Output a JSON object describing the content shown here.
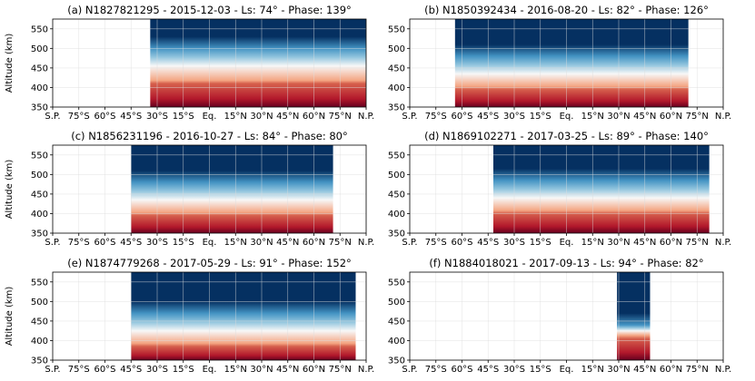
{
  "chart_data": [
    {
      "type": "heatmap",
      "title": "(a) N1827821295 - 2015-12-03 - Ls: 74° - Phase: 139°",
      "ylabel": "Altitude (km)",
      "xlabel": "",
      "x_ticks": [
        "S.P.",
        "75°S",
        "60°S",
        "45°S",
        "30°S",
        "15°S",
        "Eq.",
        "15°N",
        "30°N",
        "45°N",
        "60°N",
        "75°N",
        "N.P."
      ],
      "x_range_deg": [
        -90,
        90
      ],
      "y_ticks": [
        350,
        400,
        450,
        500,
        550
      ],
      "ylim": [
        350,
        575
      ],
      "grid": true,
      "coverage_lat": [
        -34,
        90
      ],
      "band_altitudes": {
        "red_top": 410,
        "white_top": 455,
        "lightblue_top": 500
      }
    },
    {
      "type": "heatmap",
      "title": "(b) N1850392434 - 2016-08-20 - Ls: 82° - Phase: 126°",
      "ylabel": "",
      "xlabel": "",
      "x_ticks": [
        "S.P.",
        "75°S",
        "60°S",
        "45°S",
        "30°S",
        "15°S",
        "Eq.",
        "15°N",
        "30°N",
        "45°N",
        "60°N",
        "75°N",
        "N.P."
      ],
      "x_range_deg": [
        -90,
        90
      ],
      "y_ticks": [
        350,
        400,
        450,
        500,
        550
      ],
      "ylim": [
        350,
        575
      ],
      "grid": true,
      "coverage_lat": [
        -64,
        70
      ],
      "band_altitudes": {
        "red_top": 395,
        "white_top": 435,
        "lightblue_top": 480
      }
    },
    {
      "type": "heatmap",
      "title": "(c) N1856231196 - 2016-10-27 - Ls: 84° - Phase: 80°",
      "ylabel": "Altitude (km)",
      "xlabel": "",
      "x_ticks": [
        "S.P.",
        "75°S",
        "60°S",
        "45°S",
        "30°S",
        "15°S",
        "Eq.",
        "15°N",
        "30°N",
        "45°N",
        "60°N",
        "75°N",
        "N.P."
      ],
      "x_range_deg": [
        -90,
        90
      ],
      "y_ticks": [
        350,
        400,
        450,
        500,
        550
      ],
      "ylim": [
        350,
        575
      ],
      "grid": true,
      "coverage_lat": [
        -45,
        71
      ],
      "band_altitudes": {
        "red_top": 395,
        "white_top": 435,
        "lightblue_top": 480
      }
    },
    {
      "type": "heatmap",
      "title": "(d) N1869102271 - 2017-03-25 - Ls: 89° - Phase: 140°",
      "ylabel": "",
      "xlabel": "",
      "x_ticks": [
        "S.P.",
        "75°S",
        "60°S",
        "45°S",
        "30°S",
        "15°S",
        "Eq.",
        "15°N",
        "30°N",
        "45°N",
        "60°N",
        "75°N",
        "N.P."
      ],
      "x_range_deg": [
        -90,
        90
      ],
      "y_ticks": [
        350,
        400,
        450,
        500,
        550
      ],
      "ylim": [
        350,
        575
      ],
      "grid": true,
      "coverage_lat": [
        -42,
        82
      ],
      "band_altitudes": {
        "red_top": 400,
        "white_top": 440,
        "lightblue_top": 485
      }
    },
    {
      "type": "heatmap",
      "title": "(e) N1874779268 - 2017-05-29 - Ls: 91° - Phase: 152°",
      "ylabel": "Altitude (km)",
      "xlabel": "",
      "x_ticks": [
        "S.P.",
        "75°S",
        "60°S",
        "45°S",
        "30°S",
        "15°S",
        "Eq.",
        "15°N",
        "30°N",
        "45°N",
        "60°N",
        "75°N",
        "N.P."
      ],
      "x_range_deg": [
        -90,
        90
      ],
      "y_ticks": [
        350,
        400,
        450,
        500,
        550
      ],
      "ylim": [
        350,
        575
      ],
      "grid": true,
      "coverage_lat": [
        -45,
        84
      ],
      "band_altitudes": {
        "red_top": 385,
        "white_top": 425,
        "lightblue_top": 470
      }
    },
    {
      "type": "heatmap",
      "title": "(f) N1884018021 - 2017-09-13 - Ls: 94° - Phase: 82°",
      "ylabel": "",
      "xlabel": "",
      "x_ticks": [
        "S.P.",
        "75°S",
        "60°S",
        "45°S",
        "30°S",
        "15°S",
        "Eq.",
        "15°N",
        "30°N",
        "45°N",
        "60°N",
        "75°N",
        "N.P."
      ],
      "x_range_deg": [
        -90,
        90
      ],
      "y_ticks": [
        350,
        400,
        450,
        500,
        550
      ],
      "ylim": [
        350,
        575
      ],
      "grid": true,
      "coverage_lat": [
        29,
        48
      ],
      "band_altitudes": {
        "red_top": 405,
        "white_top": 425,
        "lightblue_top": 440
      }
    }
  ],
  "colors": {
    "dark_red": "#67001f",
    "red": "#d6604d",
    "light_red": "#f4a582",
    "white": "#f7f7f7",
    "light_blue": "#92c5de",
    "blue": "#4393c3",
    "dark_blue": "#053061",
    "grid": "#dddddd",
    "axis": "#000000"
  }
}
